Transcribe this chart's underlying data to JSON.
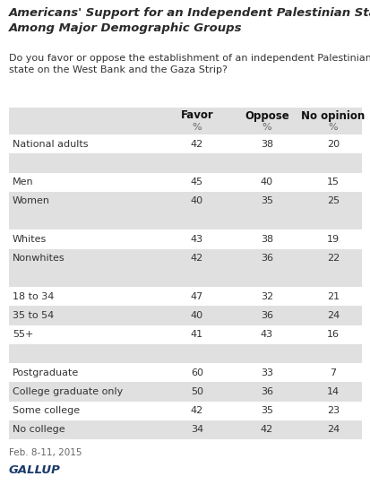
{
  "title": "Americans' Support for an Independent Palestinian State,\nAmong Major Demographic Groups",
  "subtitle": "Do you favor or oppose the establishment of an independent Palestinian\nstate on the West Bank and the Gaza Strip?",
  "col_headers": [
    "Favor",
    "Oppose",
    "No opinion"
  ],
  "col_subheaders": [
    "%",
    "%",
    "%"
  ],
  "rows": [
    {
      "label": "National adults",
      "values": [
        42,
        38,
        20
      ],
      "spacer": false,
      "shaded": false
    },
    {
      "label": "",
      "values": [
        null,
        null,
        null
      ],
      "spacer": true,
      "shaded": true
    },
    {
      "label": "Men",
      "values": [
        45,
        40,
        15
      ],
      "spacer": false,
      "shaded": false
    },
    {
      "label": "Women",
      "values": [
        40,
        35,
        25
      ],
      "spacer": false,
      "shaded": true
    },
    {
      "label": "",
      "values": [
        null,
        null,
        null
      ],
      "spacer": true,
      "shaded": true
    },
    {
      "label": "Whites",
      "values": [
        43,
        38,
        19
      ],
      "spacer": false,
      "shaded": false
    },
    {
      "label": "Nonwhites",
      "values": [
        42,
        36,
        22
      ],
      "spacer": false,
      "shaded": true
    },
    {
      "label": "",
      "values": [
        null,
        null,
        null
      ],
      "spacer": true,
      "shaded": true
    },
    {
      "label": "18 to 34",
      "values": [
        47,
        32,
        21
      ],
      "spacer": false,
      "shaded": false
    },
    {
      "label": "35 to 54",
      "values": [
        40,
        36,
        24
      ],
      "spacer": false,
      "shaded": true
    },
    {
      "label": "55+",
      "values": [
        41,
        43,
        16
      ],
      "spacer": false,
      "shaded": false
    },
    {
      "label": "",
      "values": [
        null,
        null,
        null
      ],
      "spacer": true,
      "shaded": true
    },
    {
      "label": "Postgraduate",
      "values": [
        60,
        33,
        7
      ],
      "spacer": false,
      "shaded": false
    },
    {
      "label": "College graduate only",
      "values": [
        50,
        36,
        14
      ],
      "spacer": false,
      "shaded": true
    },
    {
      "label": "Some college",
      "values": [
        42,
        35,
        23
      ],
      "spacer": false,
      "shaded": false
    },
    {
      "label": "No college",
      "values": [
        34,
        42,
        24
      ],
      "spacer": false,
      "shaded": true
    }
  ],
  "footer": "Feb. 8-11, 2015",
  "source": "GALLUP",
  "white": "#ffffff",
  "shaded_color": "#e0e0e0",
  "header_bg_color": "#e0e0e0",
  "title_color": "#2a2a2a",
  "text_color": "#333333",
  "gallup_color": "#1a3a6b"
}
